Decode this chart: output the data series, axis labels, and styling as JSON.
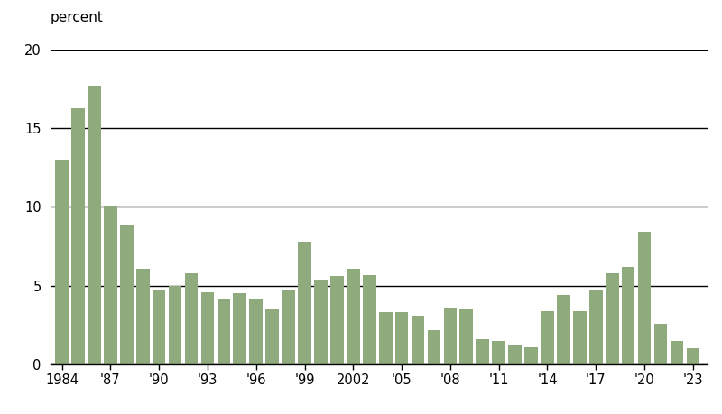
{
  "years": [
    1984,
    1985,
    1986,
    1987,
    1988,
    1989,
    1990,
    1991,
    1992,
    1993,
    1994,
    1995,
    1996,
    1997,
    1998,
    1999,
    2000,
    2001,
    2002,
    2003,
    2004,
    2005,
    2006,
    2007,
    2008,
    2009,
    2010,
    2011,
    2012,
    2013,
    2014,
    2015,
    2016,
    2017,
    2018,
    2019,
    2020,
    2021,
    2022,
    2023
  ],
  "values": [
    13.0,
    16.3,
    17.7,
    10.1,
    8.8,
    6.1,
    4.7,
    5.0,
    5.8,
    4.6,
    4.1,
    4.5,
    4.1,
    3.5,
    4.7,
    7.8,
    5.4,
    5.6,
    6.1,
    5.7,
    3.3,
    3.3,
    3.1,
    2.2,
    3.6,
    3.5,
    1.6,
    1.5,
    1.2,
    1.1,
    3.4,
    4.4,
    3.4,
    4.7,
    5.8,
    6.2,
    8.4,
    2.6,
    1.5,
    1.0
  ],
  "bar_color": "#8faa7c",
  "ylabel": "percent",
  "ylim": [
    0,
    20
  ],
  "yticks": [
    0,
    5,
    10,
    15,
    20
  ],
  "xtick_labels": [
    "1984",
    "'87",
    "'90",
    "'93",
    "'96",
    "'99",
    "2002",
    "'05",
    "'08",
    "'11",
    "'14",
    "'17",
    "'20",
    "'23"
  ],
  "xtick_positions": [
    1984,
    1987,
    1990,
    1993,
    1996,
    1999,
    2002,
    2005,
    2008,
    2011,
    2014,
    2017,
    2020,
    2023
  ],
  "grid_color": "#000000",
  "background_color": "#ffffff",
  "bar_width": 0.82,
  "xlim": [
    1983.3,
    2023.9
  ],
  "ylabel_fontsize": 11,
  "tick_fontsize": 10.5
}
